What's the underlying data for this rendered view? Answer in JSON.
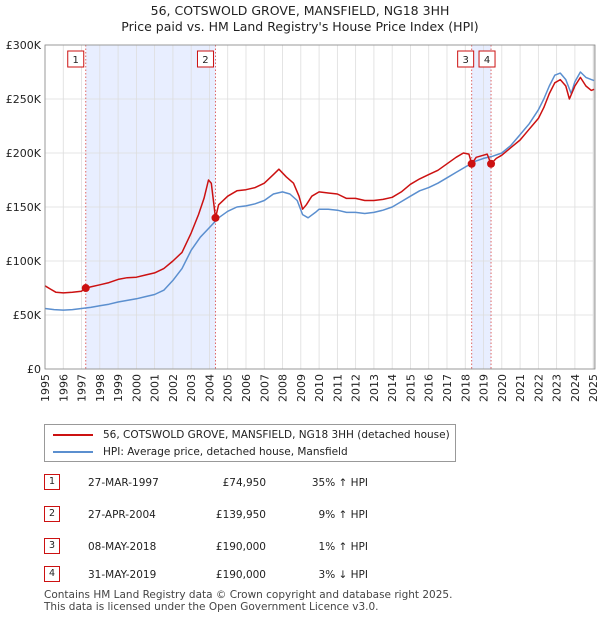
{
  "title_line1": "56, COTSWOLD GROVE, MANSFIELD, NG18 3HH",
  "title_line2": "Price paid vs. HM Land Registry's House Price Index (HPI)",
  "chart_data": {
    "type": "line",
    "x_range": [
      1995,
      2025.1
    ],
    "ylim": [
      0,
      300000
    ],
    "y_ticks": [
      0,
      50000,
      100000,
      150000,
      200000,
      250000,
      300000
    ],
    "y_tick_labels": [
      "£0",
      "£50K",
      "£100K",
      "£150K",
      "£200K",
      "£250K",
      "£300K"
    ],
    "x_ticks": [
      1995,
      1996,
      1997,
      1998,
      1999,
      2000,
      2001,
      2002,
      2003,
      2004,
      2005,
      2006,
      2007,
      2008,
      2009,
      2010,
      2011,
      2012,
      2013,
      2014,
      2015,
      2016,
      2017,
      2018,
      2019,
      2020,
      2021,
      2022,
      2023,
      2024,
      2025
    ],
    "x_tick_labels": [
      "1995",
      "1996",
      "1997",
      "1998",
      "1999",
      "2000",
      "2001",
      "2002",
      "2003",
      "2004",
      "2005",
      "2006",
      "2007",
      "2008",
      "2009",
      "2010",
      "2011",
      "2012",
      "2013",
      "2014",
      "2015",
      "2016",
      "2017",
      "2018",
      "2019",
      "2020",
      "2021",
      "2022",
      "2023",
      "2024",
      "2025"
    ],
    "grid": true,
    "series": [
      {
        "name": "56, COTSWOLD GROVE, MANSFIELD, NG18 3HH (detached house)",
        "color": "#cc1111",
        "x": [
          1995,
          1995.3,
          1995.6,
          1996,
          1996.5,
          1997,
          1997.23,
          1997.5,
          1998,
          1998.5,
          1999,
          1999.5,
          2000,
          2000.5,
          2001,
          2001.5,
          2002,
          2002.5,
          2003,
          2003.4,
          2003.7,
          2003.95,
          2004.1,
          2004.33,
          2004.5,
          2005,
          2005.5,
          2006,
          2006.5,
          2007,
          2007.5,
          2007.8,
          2008.2,
          2008.6,
          2008.9,
          2009.1,
          2009.3,
          2009.6,
          2010,
          2010.5,
          2011,
          2011.5,
          2012,
          2012.5,
          2013,
          2013.5,
          2014,
          2014.5,
          2015,
          2015.5,
          2016,
          2016.5,
          2017,
          2017.5,
          2017.9,
          2018.2,
          2018.35,
          2018.6,
          2019,
          2019.2,
          2019.41,
          2019.7,
          2020,
          2020.5,
          2021,
          2021.5,
          2022,
          2022.3,
          2022.6,
          2022.9,
          2023.2,
          2023.5,
          2023.7,
          2024,
          2024.3,
          2024.6,
          2024.9,
          2025.05
        ],
        "y": [
          77000,
          74000,
          71000,
          70500,
          71000,
          72000,
          74950,
          76000,
          78000,
          80000,
          83000,
          84500,
          85000,
          87000,
          89000,
          93000,
          100000,
          108000,
          126000,
          143000,
          158000,
          175000,
          172000,
          139950,
          152000,
          160000,
          165000,
          166000,
          168000,
          172000,
          180000,
          185000,
          178000,
          172000,
          160000,
          148000,
          152000,
          160000,
          164000,
          163000,
          162000,
          158000,
          158000,
          156000,
          156000,
          157000,
          159000,
          164000,
          171000,
          176000,
          180000,
          184000,
          190000,
          196000,
          200000,
          199000,
          190000,
          196000,
          198000,
          199000,
          190000,
          195000,
          198000,
          205000,
          212000,
          222000,
          232000,
          242000,
          255000,
          265000,
          268000,
          262000,
          250000,
          262000,
          270000,
          262000,
          258000,
          259000
        ]
      },
      {
        "name": "HPI: Average price, detached house, Mansfield",
        "color": "#5b8fcf",
        "x": [
          1995,
          1995.5,
          1996,
          1996.5,
          1997,
          1997.5,
          1998,
          1998.5,
          1999,
          1999.5,
          2000,
          2000.5,
          2001,
          2001.5,
          2002,
          2002.5,
          2003,
          2003.5,
          2004,
          2004.5,
          2005,
          2005.5,
          2006,
          2006.5,
          2007,
          2007.5,
          2008,
          2008.4,
          2008.8,
          2009.1,
          2009.4,
          2009.8,
          2010,
          2010.5,
          2011,
          2011.5,
          2012,
          2012.5,
          2013,
          2013.5,
          2014,
          2014.5,
          2015,
          2015.5,
          2016,
          2016.5,
          2017,
          2017.5,
          2018,
          2018.5,
          2019,
          2019.5,
          2020,
          2020.5,
          2021,
          2021.5,
          2022,
          2022.3,
          2022.6,
          2022.9,
          2023.2,
          2023.5,
          2023.8,
          2024,
          2024.3,
          2024.6,
          2024.9,
          2025.05
        ],
        "y": [
          56000,
          55000,
          54500,
          55000,
          56000,
          57000,
          58500,
          60000,
          62000,
          63500,
          65000,
          67000,
          69000,
          73000,
          82000,
          93000,
          110000,
          122000,
          131000,
          140000,
          146000,
          150000,
          151000,
          153000,
          156000,
          162000,
          164000,
          162000,
          156000,
          143000,
          140000,
          145000,
          148000,
          148000,
          147000,
          145000,
          145000,
          144000,
          145000,
          147000,
          150000,
          155000,
          160000,
          165000,
          168000,
          172000,
          177000,
          182000,
          187000,
          192000,
          195000,
          197000,
          200000,
          207000,
          217000,
          227000,
          240000,
          250000,
          262000,
          272000,
          274000,
          268000,
          255000,
          266000,
          275000,
          270000,
          268000,
          267000
        ]
      }
    ],
    "sales": [
      {
        "label": "1",
        "x": 1997.23,
        "price": 74950
      },
      {
        "label": "2",
        "x": 2004.33,
        "price": 139950
      },
      {
        "label": "3",
        "x": 2018.35,
        "price": 190000
      },
      {
        "label": "4",
        "x": 2019.41,
        "price": 190000
      }
    ]
  },
  "legend": {
    "series1": "56, COTSWOLD GROVE, MANSFIELD, NG18 3HH (detached house)",
    "series2": "HPI: Average price, detached house, Mansfield"
  },
  "sales_table": [
    {
      "num": "1",
      "date": "27-MAR-1997",
      "price": "£74,950",
      "hpi": "35% ↑ HPI"
    },
    {
      "num": "2",
      "date": "27-APR-2004",
      "price": "£139,950",
      "hpi": "9% ↑ HPI"
    },
    {
      "num": "3",
      "date": "08-MAY-2018",
      "price": "£190,000",
      "hpi": "1% ↑ HPI"
    },
    {
      "num": "4",
      "date": "31-MAY-2019",
      "price": "£190,000",
      "hpi": "3% ↓ HPI"
    }
  ],
  "footer": {
    "line1": "Contains HM Land Registry data © Crown copyright and database right 2025.",
    "line2": "This data is licensed under the Open Government Licence v3.0."
  },
  "colors": {
    "price_line": "#cc1111",
    "hpi_line": "#5b8fcf",
    "shade": "#e8eeff",
    "grid": "#dddddd"
  }
}
